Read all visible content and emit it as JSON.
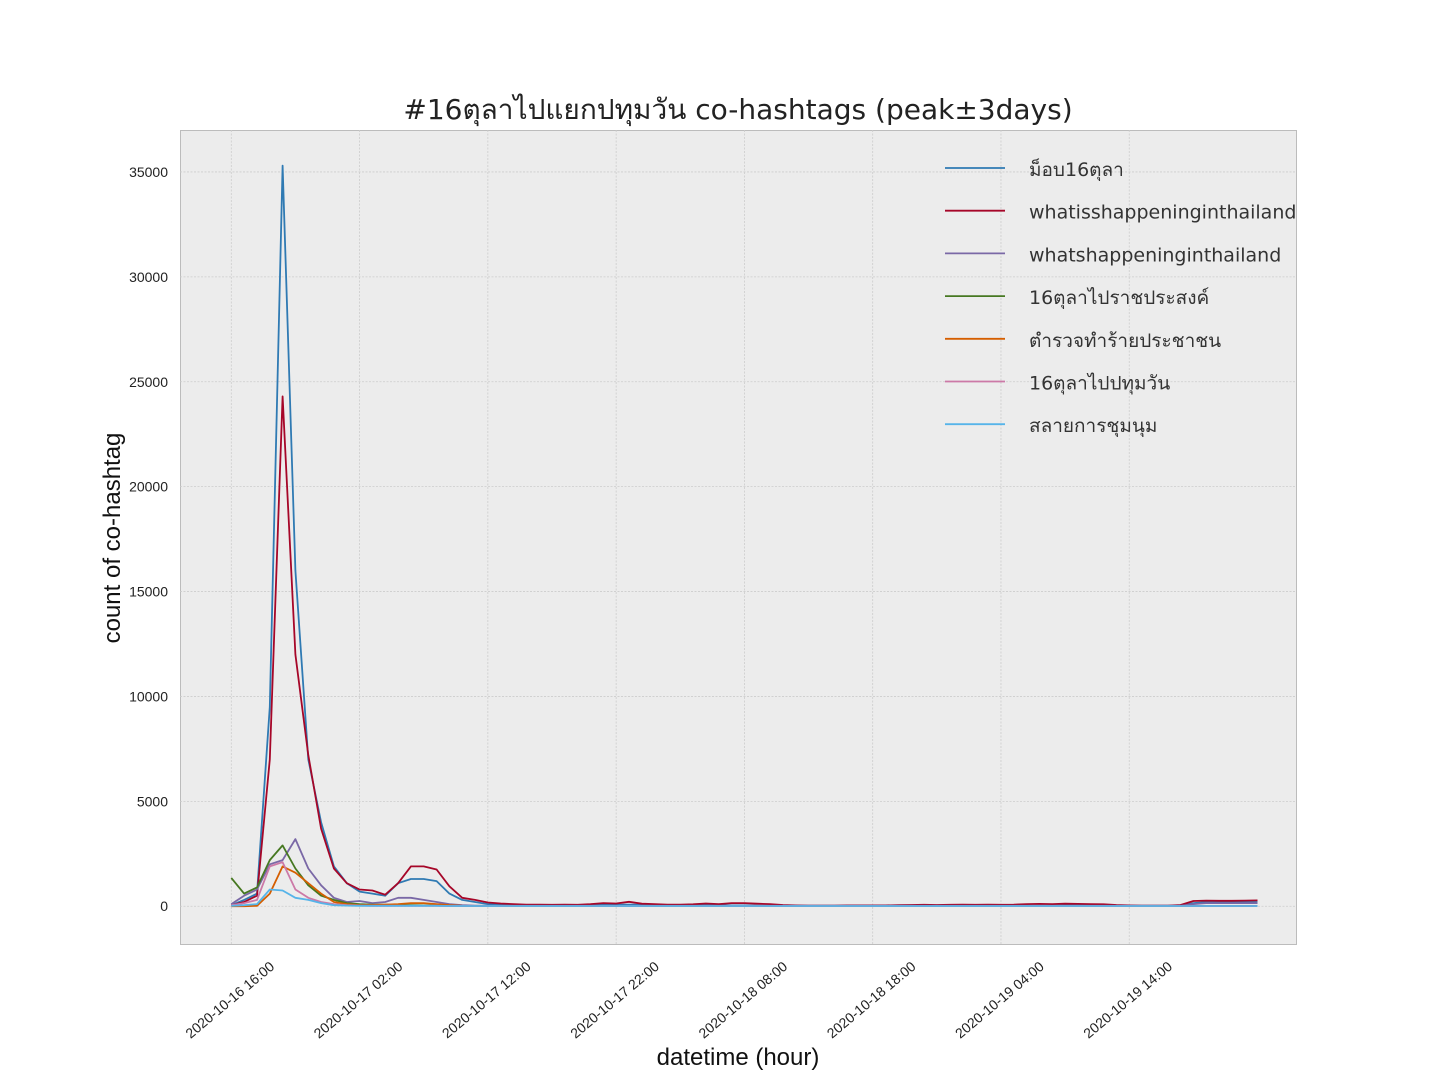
{
  "chart_data": {
    "type": "line",
    "title": "#16ตุลาไปแยกปทุมวัน co-hashtags (peak±3days)",
    "xlabel": "datetime (hour)",
    "ylabel": "count of co-hashtag",
    "x_start": "2020-10-16 16:00",
    "x_step_hours": 1,
    "x_ticks": [
      {
        "hour": 0,
        "label": "2020-10-16 16:00"
      },
      {
        "hour": 10,
        "label": "2020-10-17 02:00"
      },
      {
        "hour": 20,
        "label": "2020-10-17 12:00"
      },
      {
        "hour": 30,
        "label": "2020-10-17 22:00"
      },
      {
        "hour": 40,
        "label": "2020-10-18 08:00"
      },
      {
        "hour": 50,
        "label": "2020-10-18 18:00"
      },
      {
        "hour": 60,
        "label": "2020-10-19 04:00"
      },
      {
        "hour": 70,
        "label": "2020-10-19 14:00"
      }
    ],
    "y_ticks": [
      0,
      5000,
      10000,
      15000,
      20000,
      25000,
      30000,
      35000
    ],
    "xlim": [
      -4,
      83
    ],
    "ylim": [
      -1800,
      37000
    ],
    "grid": true,
    "background": "#ececec",
    "legend_position": "top-right",
    "series": [
      {
        "name": "ม็อบ16ตุลา",
        "color": "#2f7ab3",
        "values": [
          50,
          300,
          600,
          9500,
          35300,
          16000,
          7000,
          4000,
          1900,
          1100,
          700,
          600,
          500,
          1100,
          1300,
          1300,
          1200,
          600,
          300,
          200,
          100,
          80,
          60,
          50,
          40,
          40,
          40,
          50,
          60,
          70,
          80,
          80,
          70,
          60,
          50,
          50,
          50,
          50,
          40,
          40,
          40,
          30,
          30,
          20,
          20,
          20,
          20,
          20,
          20,
          20,
          20,
          20,
          20,
          20,
          30,
          30,
          30,
          30,
          30,
          30,
          30,
          30,
          30,
          30,
          30,
          40,
          40,
          40,
          40,
          30,
          20,
          20,
          20,
          20,
          30,
          150,
          200,
          200,
          200,
          200,
          200
        ]
      },
      {
        "name": "whatisshappeninginthailand",
        "color": "#a60628",
        "values": [
          50,
          200,
          500,
          7000,
          24300,
          12000,
          7200,
          3700,
          1800,
          1100,
          800,
          750,
          550,
          1100,
          1900,
          1900,
          1750,
          950,
          400,
          300,
          180,
          130,
          100,
          80,
          80,
          70,
          80,
          70,
          100,
          150,
          130,
          210,
          120,
          100,
          80,
          80,
          90,
          130,
          100,
          150,
          150,
          120,
          100,
          60,
          40,
          30,
          30,
          30,
          40,
          40,
          40,
          40,
          50,
          60,
          70,
          60,
          70,
          80,
          70,
          80,
          70,
          80,
          100,
          110,
          100,
          120,
          110,
          100,
          90,
          60,
          40,
          30,
          30,
          30,
          60,
          250,
          270,
          260,
          260,
          270,
          280
        ]
      },
      {
        "name": "whatshappeninginthailand",
        "color": "#7a68a6",
        "values": [
          100,
          500,
          800,
          2000,
          2200,
          3200,
          1800,
          1000,
          400,
          200,
          250,
          150,
          200,
          400,
          400,
          300,
          200,
          100,
          50,
          30,
          20,
          20,
          20,
          20,
          20,
          20,
          20,
          20,
          20,
          20,
          20,
          20,
          20,
          20,
          20,
          20,
          20,
          20,
          20,
          20,
          20,
          20,
          20,
          20,
          20,
          20,
          20,
          20,
          20,
          20,
          20,
          20,
          20,
          20,
          20,
          20,
          20,
          20,
          20,
          20,
          20,
          20,
          20,
          20,
          20,
          20,
          20,
          20,
          20,
          20,
          20,
          20,
          20,
          20,
          20,
          100,
          150,
          150,
          150,
          150,
          150
        ]
      },
      {
        "name": "16ตุลาไปราชประสงค์",
        "color": "#467821",
        "values": [
          1350,
          600,
          900,
          2200,
          2900,
          1800,
          1000,
          500,
          300,
          150,
          100,
          80,
          80,
          60,
          50,
          40,
          30,
          20,
          10,
          10,
          10,
          10,
          10,
          10,
          10,
          10,
          10,
          10,
          10,
          10,
          10,
          10,
          10,
          10,
          10,
          10,
          10,
          10,
          10,
          10,
          10,
          10,
          10,
          10,
          10,
          10,
          10,
          10,
          10,
          10,
          10,
          10,
          10,
          10,
          10,
          10,
          10,
          10,
          10,
          10,
          10,
          10,
          10,
          10,
          10,
          10,
          10,
          10,
          10,
          10,
          10,
          10,
          10,
          10,
          10,
          10,
          10,
          10,
          10,
          10,
          10
        ]
      },
      {
        "name": "ตำรวจทำร้ายประชาชน",
        "color": "#d55e00",
        "values": [
          0,
          0,
          20,
          600,
          1900,
          1600,
          1100,
          600,
          200,
          100,
          50,
          60,
          80,
          100,
          150,
          150,
          100,
          50,
          20,
          10,
          10,
          10,
          10,
          10,
          10,
          10,
          10,
          10,
          10,
          10,
          10,
          10,
          10,
          10,
          10,
          10,
          10,
          10,
          10,
          10,
          10,
          10,
          10,
          10,
          10,
          10,
          10,
          10,
          10,
          10,
          10,
          10,
          10,
          10,
          10,
          10,
          10,
          10,
          10,
          10,
          10,
          10,
          10,
          10,
          10,
          10,
          10,
          10,
          10,
          10,
          10,
          10,
          10,
          10,
          10,
          10,
          10,
          10,
          10,
          10,
          10
        ]
      },
      {
        "name": "16ตุลาไปปทุมวัน",
        "color": "#cc79a7",
        "values": [
          50,
          150,
          300,
          1900,
          2100,
          800,
          400,
          200,
          100,
          50,
          30,
          20,
          20,
          20,
          20,
          20,
          20,
          10,
          10,
          10,
          10,
          10,
          10,
          10,
          10,
          10,
          10,
          10,
          10,
          10,
          10,
          10,
          10,
          10,
          10,
          10,
          10,
          10,
          10,
          10,
          10,
          10,
          10,
          10,
          10,
          10,
          10,
          10,
          10,
          10,
          10,
          10,
          10,
          10,
          10,
          10,
          10,
          10,
          10,
          10,
          10,
          10,
          10,
          10,
          10,
          10,
          10,
          10,
          10,
          10,
          10,
          10,
          10,
          10,
          10,
          10,
          10,
          10,
          10,
          10,
          10
        ]
      },
      {
        "name": "สลายการชุมนุม",
        "color": "#56b4e9",
        "values": [
          20,
          50,
          100,
          800,
          750,
          400,
          300,
          150,
          50,
          30,
          20,
          20,
          20,
          20,
          20,
          20,
          20,
          10,
          10,
          10,
          10,
          10,
          10,
          10,
          10,
          10,
          10,
          10,
          10,
          10,
          10,
          10,
          10,
          10,
          10,
          10,
          10,
          10,
          10,
          10,
          10,
          10,
          10,
          10,
          10,
          10,
          10,
          10,
          10,
          10,
          10,
          10,
          10,
          10,
          10,
          10,
          10,
          10,
          10,
          10,
          10,
          10,
          10,
          10,
          10,
          10,
          10,
          10,
          10,
          10,
          10,
          10,
          10,
          10,
          10,
          10,
          10,
          10,
          10,
          10,
          10
        ]
      }
    ]
  }
}
